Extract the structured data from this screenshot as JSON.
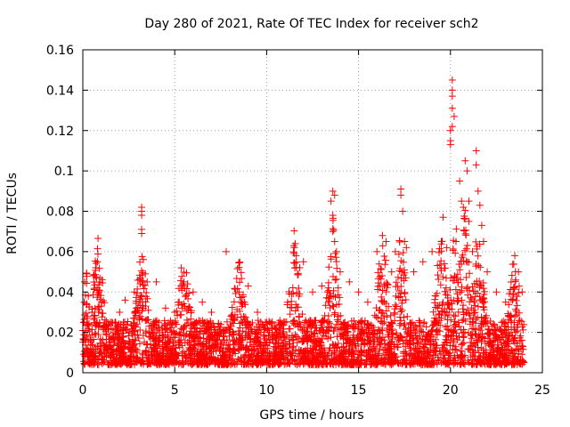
{
  "chart_data": {
    "type": "scatter",
    "title": "Day 280 of 2021, Rate Of TEC Index for receiver sch2",
    "xlabel": "GPS time / hours",
    "ylabel": "ROTI / TECUs",
    "xlim": [
      0,
      25
    ],
    "ylim": [
      0,
      0.16
    ],
    "xticks": [
      0,
      5,
      10,
      15,
      20,
      25
    ],
    "xtick_labels": [
      "0",
      "5",
      "10",
      "15",
      "20",
      "25"
    ],
    "yticks": [
      0,
      0.02,
      0.04,
      0.06,
      0.08,
      0.1,
      0.12,
      0.14,
      0.16
    ],
    "ytick_labels": [
      "0",
      "0.02",
      "0.04",
      "0.06",
      "0.08",
      "0.1",
      "0.12",
      "0.14",
      "0.16"
    ],
    "grid": true,
    "marker": "+",
    "color": "#ff0000",
    "series": [
      {
        "points": [
          [
            0.1,
            0.045
          ],
          [
            0.3,
            0.038
          ],
          [
            0.5,
            0.03
          ],
          [
            0.7,
            0.052
          ],
          [
            0.8,
            0.055
          ],
          [
            1.0,
            0.033
          ],
          [
            1.5,
            0.025
          ],
          [
            2.0,
            0.03
          ],
          [
            2.3,
            0.036
          ],
          [
            2.8,
            0.04
          ],
          [
            3.2,
            0.082
          ],
          [
            3.2,
            0.08
          ],
          [
            3.2,
            0.078
          ],
          [
            3.2,
            0.071
          ],
          [
            3.2,
            0.069
          ],
          [
            3.4,
            0.049
          ],
          [
            3.5,
            0.045
          ],
          [
            4.0,
            0.045
          ],
          [
            4.5,
            0.032
          ],
          [
            5.0,
            0.03
          ],
          [
            5.5,
            0.045
          ],
          [
            5.7,
            0.044
          ],
          [
            6.0,
            0.04
          ],
          [
            6.5,
            0.035
          ],
          [
            7.0,
            0.03
          ],
          [
            7.8,
            0.06
          ],
          [
            8.5,
            0.04
          ],
          [
            9.0,
            0.043
          ],
          [
            9.5,
            0.03
          ],
          [
            10.0,
            0.025
          ],
          [
            10.5,
            0.022
          ],
          [
            11.0,
            0.025
          ],
          [
            11.5,
            0.062
          ],
          [
            11.6,
            0.058
          ],
          [
            11.8,
            0.052
          ],
          [
            12.0,
            0.055
          ],
          [
            12.5,
            0.04
          ],
          [
            13.0,
            0.043
          ],
          [
            13.5,
            0.085
          ],
          [
            13.6,
            0.09
          ],
          [
            13.7,
            0.088
          ],
          [
            13.6,
            0.078
          ],
          [
            13.6,
            0.07
          ],
          [
            13.7,
            0.065
          ],
          [
            13.8,
            0.06
          ],
          [
            14.0,
            0.05
          ],
          [
            14.5,
            0.045
          ],
          [
            15.0,
            0.04
          ],
          [
            15.5,
            0.035
          ],
          [
            16.0,
            0.06
          ],
          [
            16.3,
            0.068
          ],
          [
            16.5,
            0.065
          ],
          [
            16.8,
            0.05
          ],
          [
            17.0,
            0.06
          ],
          [
            17.3,
            0.091
          ],
          [
            17.3,
            0.088
          ],
          [
            17.4,
            0.08
          ],
          [
            17.5,
            0.065
          ],
          [
            17.6,
            0.062
          ],
          [
            18.0,
            0.05
          ],
          [
            18.5,
            0.055
          ],
          [
            19.0,
            0.06
          ],
          [
            19.5,
            0.065
          ],
          [
            19.6,
            0.077
          ],
          [
            19.8,
            0.062
          ],
          [
            20.0,
            0.12
          ],
          [
            20.0,
            0.115
          ],
          [
            20.1,
            0.145
          ],
          [
            20.1,
            0.14
          ],
          [
            20.1,
            0.137
          ],
          [
            20.1,
            0.131
          ],
          [
            20.2,
            0.127
          ],
          [
            20.1,
            0.122
          ],
          [
            20.0,
            0.113
          ],
          [
            20.3,
            0.065
          ],
          [
            20.5,
            0.095
          ],
          [
            20.6,
            0.085
          ],
          [
            20.7,
            0.082
          ],
          [
            20.8,
            0.105
          ],
          [
            20.9,
            0.1
          ],
          [
            21.0,
            0.085
          ],
          [
            21.0,
            0.075
          ],
          [
            21.2,
            0.06
          ],
          [
            21.4,
            0.11
          ],
          [
            21.4,
            0.103
          ],
          [
            21.5,
            0.09
          ],
          [
            21.6,
            0.083
          ],
          [
            21.7,
            0.073
          ],
          [
            21.8,
            0.065
          ],
          [
            22.0,
            0.05
          ],
          [
            22.5,
            0.04
          ],
          [
            23.0,
            0.035
          ],
          [
            23.5,
            0.058
          ],
          [
            23.7,
            0.05
          ],
          [
            23.9,
            0.04
          ]
        ]
      }
    ]
  }
}
